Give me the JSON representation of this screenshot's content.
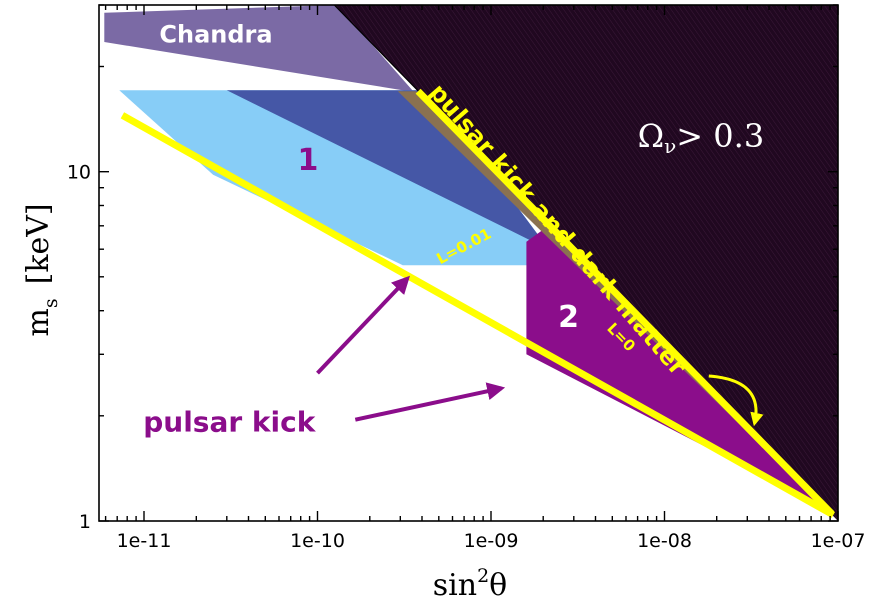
{
  "chart_data": {
    "type": "area",
    "title": "",
    "xlabel": "sin²θ",
    "xlabel_base": "sin",
    "xlabel_sup": "2",
    "xlabel_tail": "θ",
    "ylabel": "m_s [keV]",
    "ylabel_base": "m",
    "ylabel_sub": "s",
    "ylabel_tail": "[keV]",
    "x_scale": "log",
    "y_scale": "log",
    "xlim": [
      5.5e-12,
      1e-07
    ],
    "ylim": [
      1,
      30
    ],
    "x_ticks": [
      {
        "value": 1e-11,
        "label": "1e-11"
      },
      {
        "value": 1e-10,
        "label": "1e-10"
      },
      {
        "value": 1e-09,
        "label": "1e-09"
      },
      {
        "value": 1e-08,
        "label": "1e-08"
      },
      {
        "value": 1e-07,
        "label": "1e-07"
      }
    ],
    "y_ticks": [
      {
        "value": 1,
        "label": "1"
      },
      {
        "value": 10,
        "label": "10"
      }
    ],
    "grid": false,
    "regions": [
      {
        "id": "chandra",
        "color": "#7b6aa5",
        "points": [
          [
            5.9e-12,
            28.5
          ],
          [
            5.9e-12,
            23.5
          ],
          [
            3.6e-10,
            16.9
          ],
          [
            1.3e-10,
            30
          ]
        ]
      },
      {
        "id": "region1",
        "color": "#87cdf7",
        "points": [
          [
            7.2e-12,
            17.1
          ],
          [
            4.5e-10,
            17.1
          ],
          [
            2e-09,
            6.3
          ],
          [
            2e-09,
            5.4
          ],
          [
            3.1e-10,
            5.4
          ],
          [
            2.5e-11,
            9.8
          ]
        ]
      },
      {
        "id": "overlap",
        "color": "#4557a6",
        "points": [
          [
            3e-11,
            17.1
          ],
          [
            4.5e-10,
            17.1
          ],
          [
            2e-09,
            6.3
          ],
          [
            2e-09,
            6.1
          ]
        ]
      },
      {
        "id": "region2",
        "color": "#8b0d8b",
        "points": [
          [
            1.6e-09,
            6.3
          ],
          [
            1.6e-09,
            3.0
          ],
          [
            8.6e-08,
            1.08
          ],
          [
            2.5e-09,
            7.4
          ]
        ]
      },
      {
        "id": "pulsar_dm_strip",
        "color": "#8a7150",
        "points": [
          [
            2.9e-10,
            17.0
          ],
          [
            3.7e-10,
            17.0
          ],
          [
            8.6e-08,
            1.08
          ]
        ]
      },
      {
        "id": "omega_excluded",
        "color": "#200820",
        "points": [
          [
            1.25e-10,
            30
          ],
          [
            1e-07,
            30
          ],
          [
            1e-07,
            1.0
          ],
          [
            8.6e-08,
            1.08
          ]
        ]
      }
    ],
    "series": [
      {
        "name": "L=0.01",
        "color": "#ffff00",
        "points": [
          [
            7.5e-12,
            14.5
          ],
          [
            9.4e-08,
            1.04
          ]
        ]
      },
      {
        "name": "L=0",
        "color": "#ffff00",
        "points": [
          [
            3.8e-10,
            17.0
          ],
          [
            9.2e-08,
            1.05
          ]
        ]
      }
    ],
    "annotations": {
      "chandra": {
        "text": "Chandra",
        "x": 2.6e-11,
        "y": 24.5,
        "color": "#ffffff"
      },
      "region1": {
        "text": "1",
        "x": 8.8e-11,
        "y": 10.7,
        "color": "#8b0d8b"
      },
      "region2": {
        "text": "2",
        "x": 2.8e-09,
        "y": 3.8,
        "color": "#ffffff"
      },
      "omega": {
        "text": "Ω",
        "sub": "ν",
        "tail": "> 0.3",
        "x": 7e-09,
        "y": 12.5,
        "color": "#ffffff"
      },
      "pulsar_dm": {
        "text": "pulsar kick and dark matter",
        "x": 2.4e-09,
        "y": 6.8,
        "color": "#ffff00"
      },
      "l001": {
        "text": "L=0.01",
        "x": 7e-10,
        "y": 6.1,
        "color": "#ffff00"
      },
      "l0": {
        "text": "L=0",
        "x": 5.6e-09,
        "y": 3.35,
        "color": "#ffff00"
      },
      "pulsar_kick": {
        "text": "pulsar kick",
        "x": 3.1e-11,
        "y": 1.9,
        "color": "#8b0d8b"
      }
    },
    "arrows": [
      {
        "color": "#8b0d8b",
        "from": [
          1e-10,
          2.65
        ],
        "to": [
          3.3e-10,
          4.95
        ]
      },
      {
        "color": "#8b0d8b",
        "from": [
          1.65e-10,
          1.95
        ],
        "to": [
          1.15e-09,
          2.4
        ]
      },
      {
        "color": "#ffff00",
        "from": [
          1.8e-08,
          2.6
        ],
        "to": [
          3.3e-08,
          1.9
        ]
      }
    ]
  }
}
